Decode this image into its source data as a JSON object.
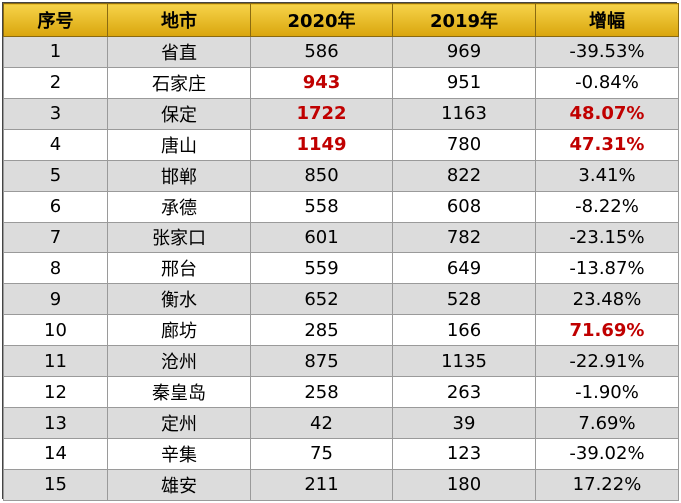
{
  "table": {
    "headers": [
      "序号",
      "地市",
      "2020年",
      "2019年",
      "增幅"
    ],
    "highlight_color": "#c00000",
    "header_color": "#e8b820",
    "rows": [
      {
        "no": "1",
        "city": "省直",
        "y2020": "586",
        "y2019": "969",
        "growth": "-39.53%",
        "hl2020": false,
        "hlGrowth": false
      },
      {
        "no": "2",
        "city": "石家庄",
        "y2020": "943",
        "y2019": "951",
        "growth": "-0.84%",
        "hl2020": true,
        "hlGrowth": false
      },
      {
        "no": "3",
        "city": "保定",
        "y2020": "1722",
        "y2019": "1163",
        "growth": "48.07%",
        "hl2020": true,
        "hlGrowth": true
      },
      {
        "no": "4",
        "city": "唐山",
        "y2020": "1149",
        "y2019": "780",
        "growth": "47.31%",
        "hl2020": true,
        "hlGrowth": true
      },
      {
        "no": "5",
        "city": "邯郸",
        "y2020": "850",
        "y2019": "822",
        "growth": "3.41%",
        "hl2020": false,
        "hlGrowth": false
      },
      {
        "no": "6",
        "city": "承德",
        "y2020": "558",
        "y2019": "608",
        "growth": "-8.22%",
        "hl2020": false,
        "hlGrowth": false
      },
      {
        "no": "7",
        "city": "张家口",
        "y2020": "601",
        "y2019": "782",
        "growth": "-23.15%",
        "hl2020": false,
        "hlGrowth": false
      },
      {
        "no": "8",
        "city": "邢台",
        "y2020": "559",
        "y2019": "649",
        "growth": "-13.87%",
        "hl2020": false,
        "hlGrowth": false
      },
      {
        "no": "9",
        "city": "衡水",
        "y2020": "652",
        "y2019": "528",
        "growth": "23.48%",
        "hl2020": false,
        "hlGrowth": false
      },
      {
        "no": "10",
        "city": "廊坊",
        "y2020": "285",
        "y2019": "166",
        "growth": "71.69%",
        "hl2020": false,
        "hlGrowth": true
      },
      {
        "no": "11",
        "city": "沧州",
        "y2020": "875",
        "y2019": "1135",
        "growth": "-22.91%",
        "hl2020": false,
        "hlGrowth": false
      },
      {
        "no": "12",
        "city": "秦皇岛",
        "y2020": "258",
        "y2019": "263",
        "growth": "-1.90%",
        "hl2020": false,
        "hlGrowth": false
      },
      {
        "no": "13",
        "city": "定州",
        "y2020": "42",
        "y2019": "39",
        "growth": "7.69%",
        "hl2020": false,
        "hlGrowth": false
      },
      {
        "no": "14",
        "city": "辛集",
        "y2020": "75",
        "y2019": "123",
        "growth": "-39.02%",
        "hl2020": false,
        "hlGrowth": false
      },
      {
        "no": "15",
        "city": "雄安",
        "y2020": "211",
        "y2019": "180",
        "growth": "17.22%",
        "hl2020": false,
        "hlGrowth": false
      }
    ]
  }
}
